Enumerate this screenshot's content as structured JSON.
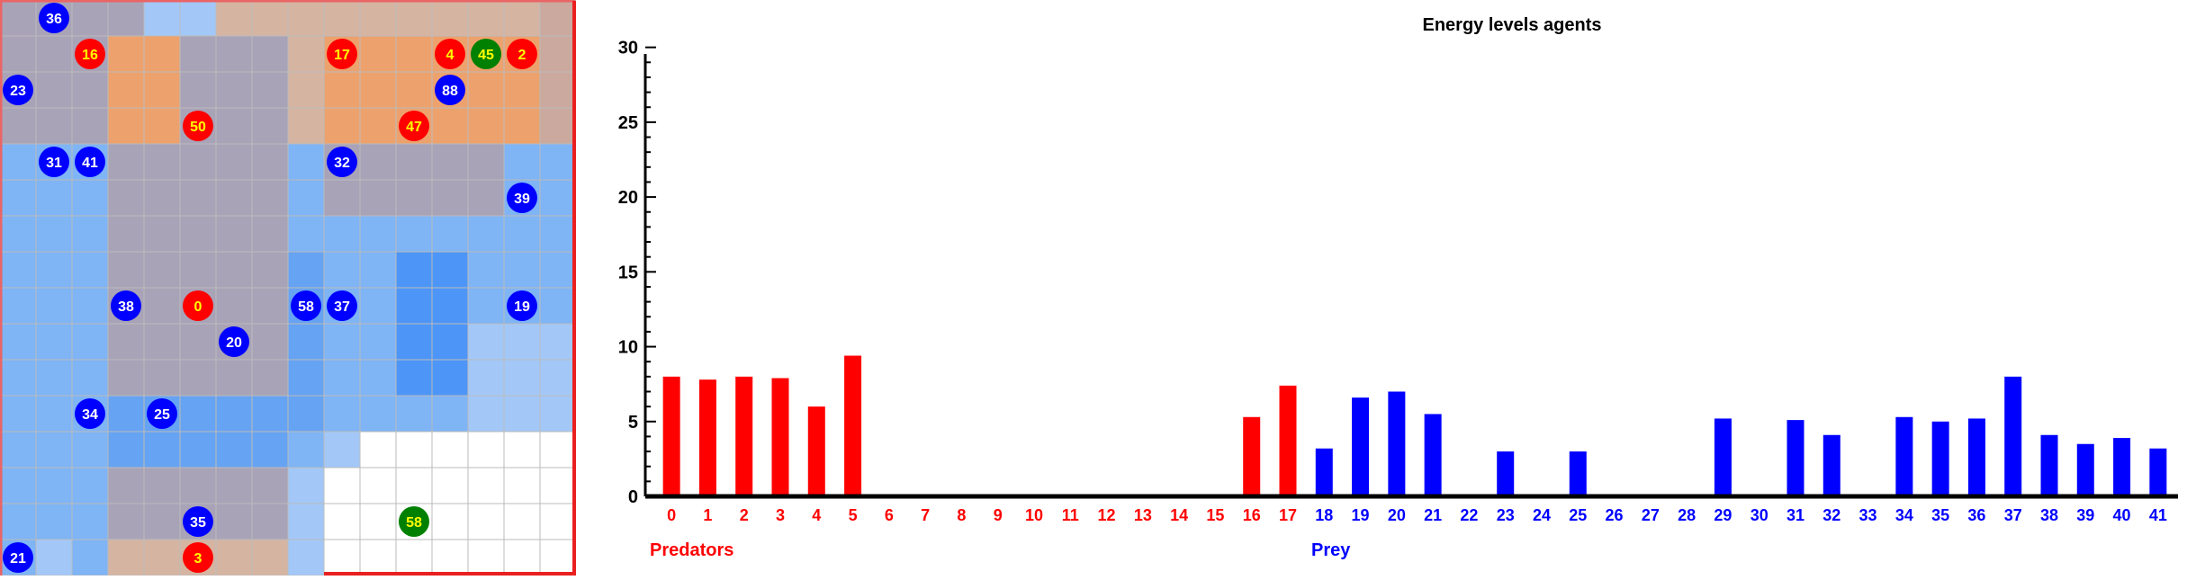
{
  "grid": {
    "rows": 16,
    "cols": 16,
    "palette": {
      "A": "#9aa7c6",
      "O": "#eda26d",
      "P": "#a9a3b8",
      "T": "#d6b4a2",
      "B": "#66a3f2",
      "M": "#7fb4f5",
      "L": "#a3c8f8",
      "W": "#ffffff",
      "S": "#cba99e",
      "D": "#4d96f7"
    },
    "grid_line_color": "#bbbbbb",
    "cells": [
      "PPPPLLTTTTTTTTTS",
      "PPPOOPPPTOOOOOOS",
      "PPPOOPPPTOOOOOOS",
      "PPPOOPPPTOOOOOOS",
      "MMMPPPPPMPPPPPMM",
      "MMMPPPPPMPPPPPMM",
      "MMMPPPPPMMMMMMMM",
      "MMMPPPPPBMMDDMMM",
      "MMMPPPPPBMMDDMMM",
      "MMMPPPPPBMMDDLLL",
      "MMMPPPPPBMMDDLLL",
      "MMMBBBBBBMMMMLLL",
      "MMMBBBBBMLWWWWWW",
      "MMMPPPPPLWWWWWWW",
      "MMMPPPPPLWWWWWWW",
      "MLMTTTTTLWWWWWWW"
    ],
    "borders": [
      {
        "color": "#ea6565",
        "segment": "top-left"
      },
      {
        "color": "#ea6565",
        "segment": "bottom-right"
      }
    ],
    "agents": [
      {
        "id": "36",
        "role": "prey",
        "row": 0,
        "col": 1
      },
      {
        "id": "16",
        "role": "predator",
        "row": 1,
        "col": 2
      },
      {
        "id": "17",
        "role": "predator",
        "row": 1,
        "col": 9
      },
      {
        "id": "4",
        "role": "predator",
        "row": 1,
        "col": 12
      },
      {
        "id": "45",
        "role": "food",
        "row": 1,
        "col": 13
      },
      {
        "id": "2",
        "role": "predator",
        "row": 1,
        "col": 14
      },
      {
        "id": "23",
        "role": "prey",
        "row": 2,
        "col": 0
      },
      {
        "id": "88",
        "role": "prey",
        "row": 2,
        "col": 12
      },
      {
        "id": "50",
        "role": "predator",
        "row": 3,
        "col": 5
      },
      {
        "id": "47",
        "role": "predator",
        "row": 3,
        "col": 11
      },
      {
        "id": "31",
        "role": "prey",
        "row": 4,
        "col": 1
      },
      {
        "id": "41",
        "role": "prey",
        "row": 4,
        "col": 2
      },
      {
        "id": "32",
        "role": "prey",
        "row": 4,
        "col": 9
      },
      {
        "id": "39",
        "role": "prey",
        "row": 5,
        "col": 14
      },
      {
        "id": "38",
        "role": "prey",
        "row": 8,
        "col": 3
      },
      {
        "id": "0",
        "role": "predator",
        "row": 8,
        "col": 5
      },
      {
        "id": "58",
        "role": "prey",
        "row": 8,
        "col": 8
      },
      {
        "id": "37",
        "role": "prey",
        "row": 8,
        "col": 9
      },
      {
        "id": "19",
        "role": "prey",
        "row": 8,
        "col": 14
      },
      {
        "id": "20",
        "role": "prey",
        "row": 9,
        "col": 6
      },
      {
        "id": "34",
        "role": "prey",
        "row": 11,
        "col": 2
      },
      {
        "id": "25",
        "role": "prey",
        "row": 11,
        "col": 4
      },
      {
        "id": "35",
        "role": "prey",
        "row": 14,
        "col": 5
      },
      {
        "id": "58",
        "role": "food",
        "row": 14,
        "col": 11
      },
      {
        "id": "21",
        "role": "prey",
        "row": 15,
        "col": 0
      },
      {
        "id": "3",
        "role": "predator",
        "row": 15,
        "col": 5
      }
    ],
    "role_colors": {
      "predator": "#ff0000",
      "prey": "#0000ff",
      "food": "#008000"
    },
    "label_color": "#ffff00",
    "label_color_prey": "#ffffff"
  },
  "chart_data": {
    "type": "bar",
    "title": "Energy levels agents",
    "ylim": [
      0,
      31
    ],
    "yticks": [
      0,
      5,
      10,
      15,
      20,
      25,
      30
    ],
    "categories": [
      "0",
      "1",
      "2",
      "3",
      "4",
      "5",
      "6",
      "7",
      "8",
      "9",
      "10",
      "11",
      "12",
      "13",
      "14",
      "15",
      "16",
      "17",
      "18",
      "19",
      "20",
      "21",
      "22",
      "23",
      "24",
      "25",
      "26",
      "27",
      "28",
      "29",
      "30",
      "31",
      "32",
      "33",
      "34",
      "35",
      "36",
      "37",
      "38",
      "39",
      "40",
      "41"
    ],
    "values": [
      8.0,
      7.8,
      8.0,
      7.9,
      6.0,
      9.4,
      0,
      0,
      0,
      0,
      0,
      0,
      0,
      0,
      0,
      0,
      5.3,
      7.4,
      3.2,
      6.6,
      7.0,
      5.5,
      0,
      3.0,
      0,
      3.0,
      0,
      0,
      0,
      5.2,
      0,
      5.1,
      4.1,
      0,
      5.3,
      5.0,
      5.2,
      8.0,
      4.1,
      3.5,
      3.9,
      3.2
    ],
    "predator_count": 18,
    "colors": {
      "predators": "#ff0000",
      "prey": "#0000ff"
    },
    "group_labels": {
      "predators": "Predators",
      "prey": "Prey"
    }
  }
}
